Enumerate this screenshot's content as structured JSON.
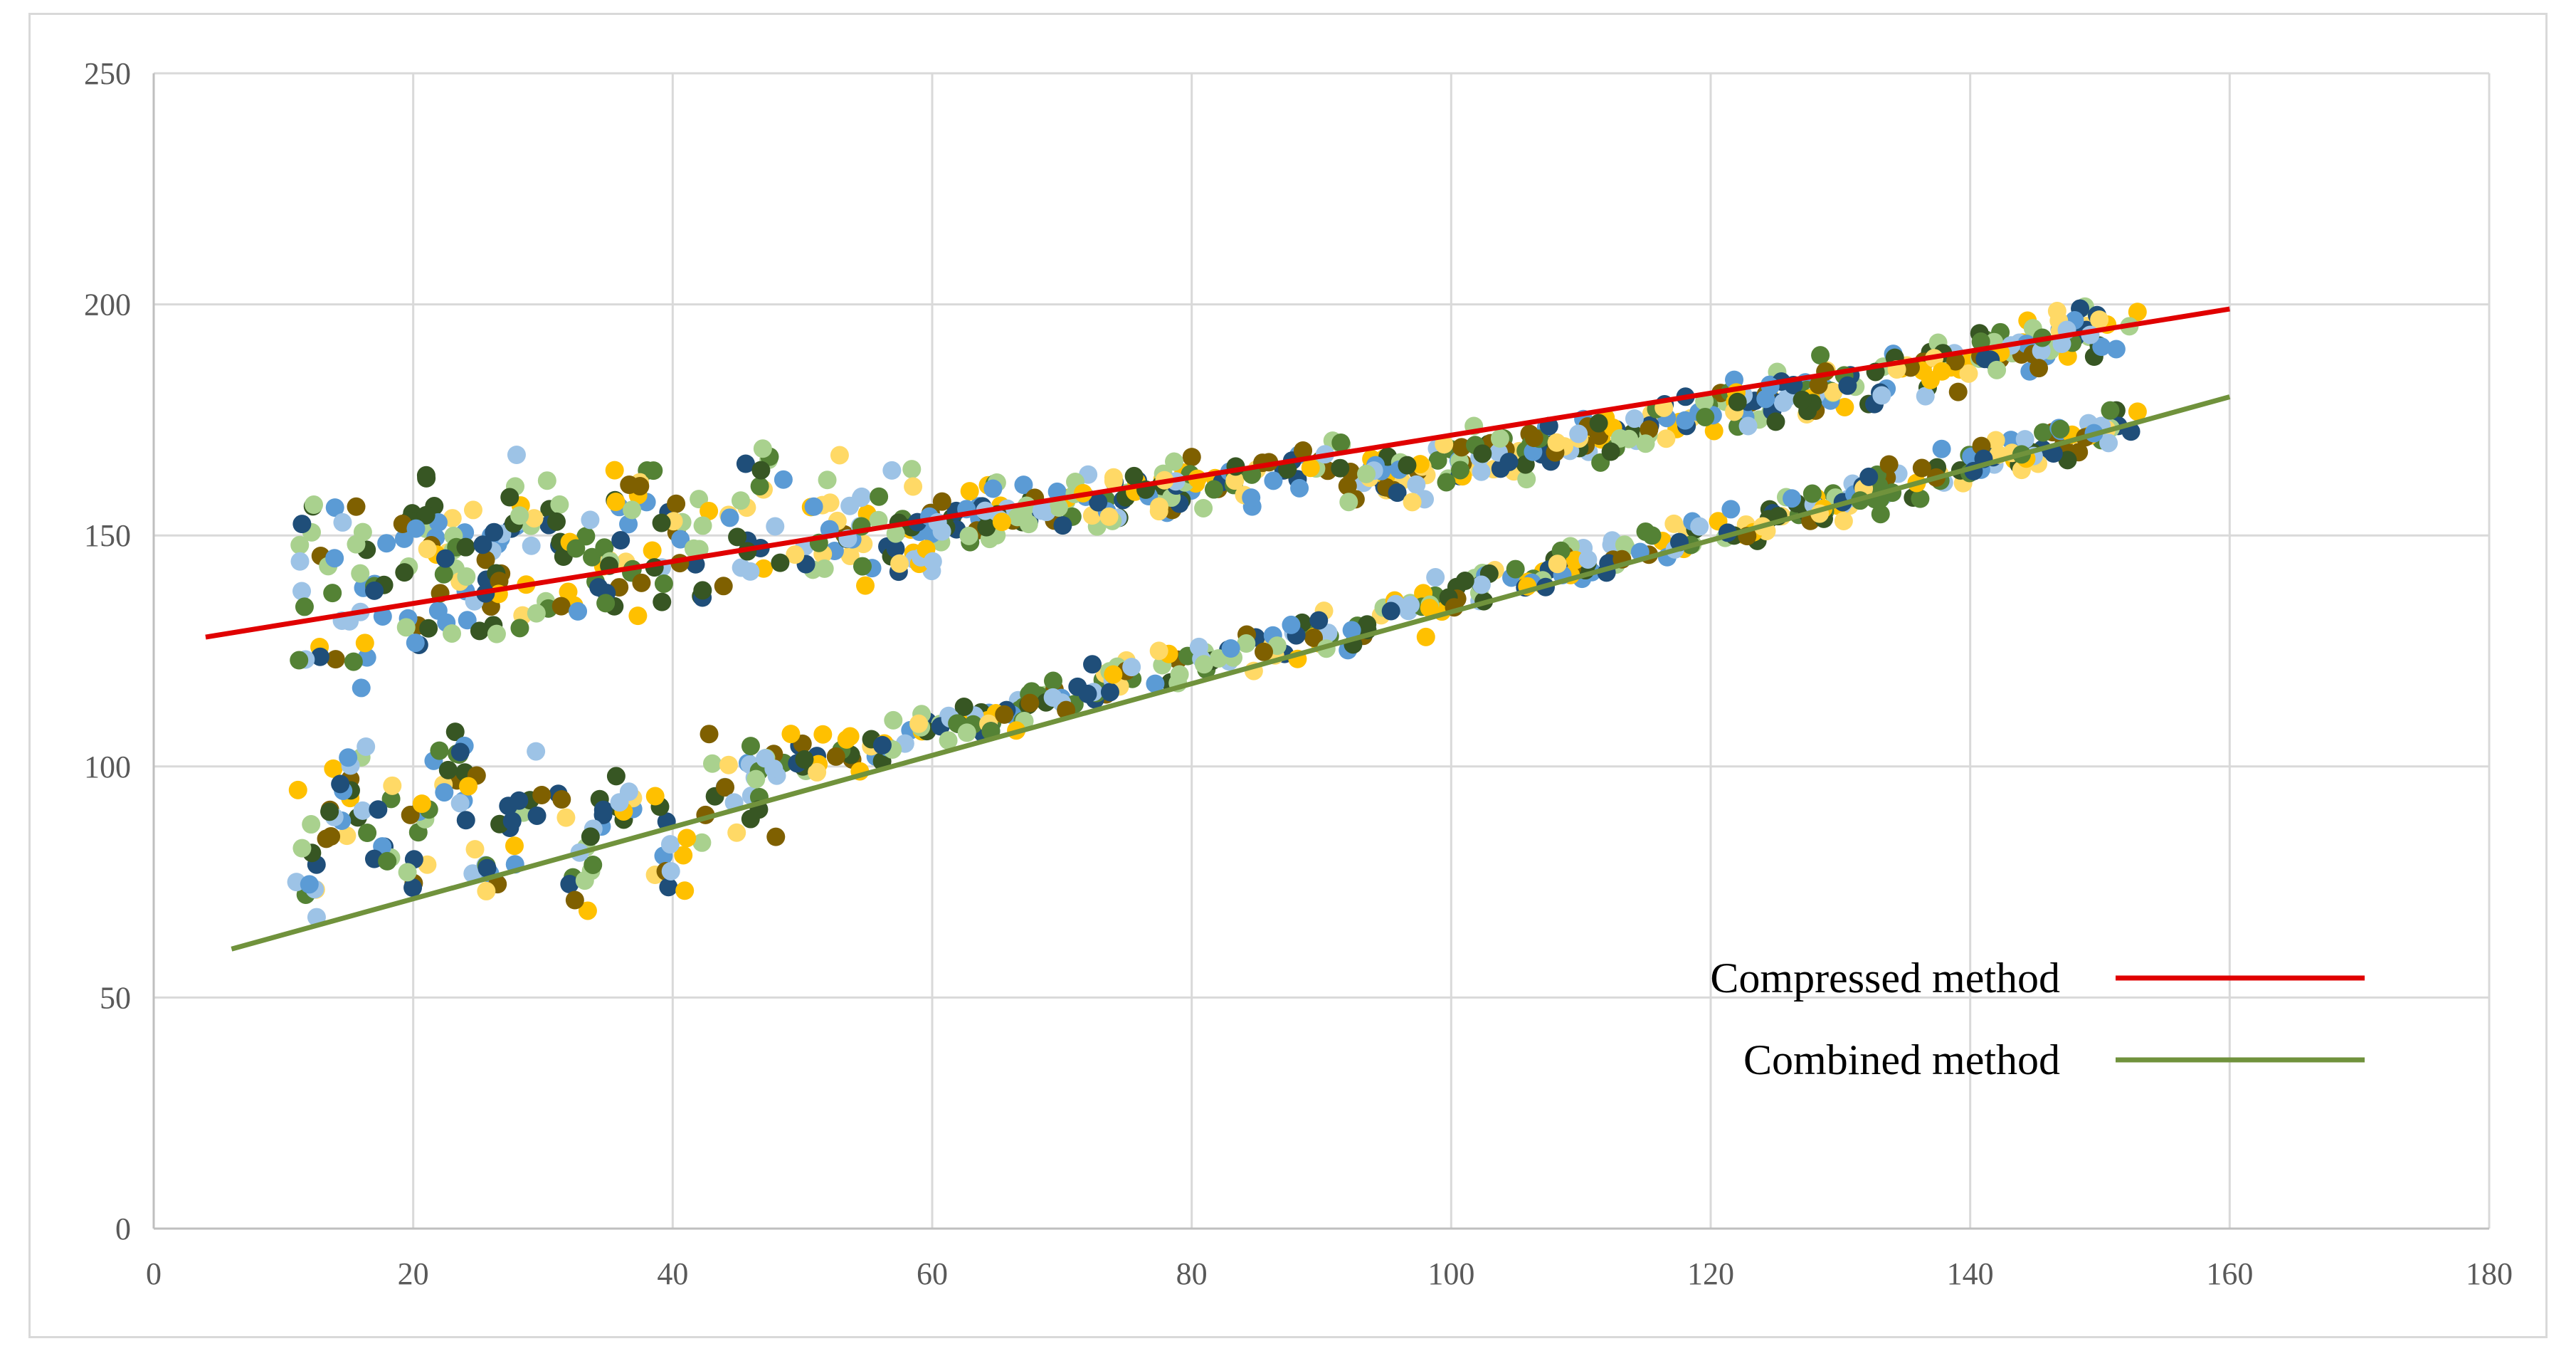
{
  "chart_data": {
    "type": "scatter",
    "title": "",
    "xlabel": "",
    "ylabel": "",
    "xlim": [
      0,
      180
    ],
    "ylim": [
      0,
      250
    ],
    "x_ticks": [
      "0",
      "20",
      "40",
      "60",
      "80",
      "100",
      "120",
      "140",
      "160",
      "180"
    ],
    "y_ticks": [
      "0",
      "50",
      "100",
      "150",
      "200",
      "250"
    ],
    "grid": true,
    "legend_position": "bottom-right",
    "series": [
      {
        "name": "Compressed method",
        "kind": "trendline",
        "color": "#e00000",
        "x": [
          4,
          160
        ],
        "y": [
          128,
          199
        ]
      },
      {
        "name": "Combined method",
        "kind": "trendline",
        "color": "#70923c",
        "x": [
          6,
          160
        ],
        "y": [
          60.5,
          180
        ]
      }
    ],
    "scatter_colors": [
      "#5b9bd5",
      "#9dc3e6",
      "#1f4e79",
      "#ffc000",
      "#ffd966",
      "#7f6000",
      "#548235",
      "#a9d18e",
      "#375623"
    ]
  }
}
